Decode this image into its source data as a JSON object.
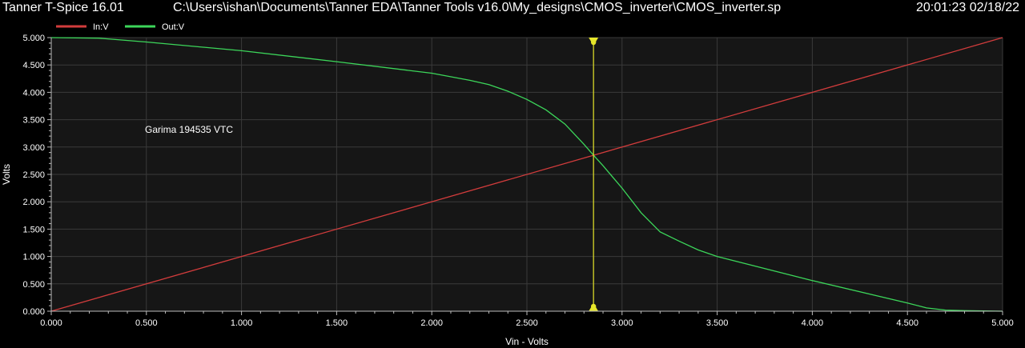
{
  "window": {
    "app_title": "Tanner T-Spice 16.01",
    "file_path": "C:\\Users\\ishan\\Documents\\Tanner EDA\\Tanner Tools v16.0\\My_designs\\CMOS_inverter\\CMOS_inverter.sp",
    "timestamp": "20:01:23 02/18/22"
  },
  "chart_data": {
    "type": "line",
    "xlabel": "Vin - Volts",
    "ylabel": "Volts",
    "xlim": [
      0,
      5
    ],
    "ylim": [
      0,
      5
    ],
    "xticks": [
      "0.000",
      "0.500",
      "1.000",
      "1.500",
      "2.000",
      "2.500",
      "3.000",
      "3.500",
      "4.000",
      "4.500",
      "5.000"
    ],
    "yticks": [
      "0.000",
      "0.500",
      "1.000",
      "1.500",
      "2.000",
      "2.500",
      "3.000",
      "3.500",
      "4.000",
      "4.500",
      "5.000"
    ],
    "grid": true,
    "legend_position": "top-left",
    "annotation": "Garima 194535 VTC",
    "cursor_x": 2.85,
    "series": [
      {
        "name": "In:V",
        "color": "#d23c3c",
        "x": [
          0,
          5
        ],
        "y": [
          0,
          5
        ]
      },
      {
        "name": "Out:V",
        "color": "#3cd65a",
        "x": [
          0,
          0.25,
          0.5,
          1.0,
          1.5,
          2.0,
          2.2,
          2.3,
          2.4,
          2.5,
          2.6,
          2.7,
          2.8,
          2.85,
          2.9,
          3.0,
          3.1,
          3.2,
          3.3,
          3.4,
          3.5,
          4.0,
          4.5,
          4.6,
          4.7,
          4.8,
          5.0
        ],
        "y": [
          5.0,
          4.99,
          4.92,
          4.76,
          4.56,
          4.35,
          4.22,
          4.14,
          4.02,
          3.87,
          3.68,
          3.42,
          3.05,
          2.85,
          2.66,
          2.25,
          1.8,
          1.45,
          1.28,
          1.12,
          1.0,
          0.56,
          0.15,
          0.06,
          0.02,
          0.01,
          0.0
        ]
      }
    ]
  }
}
